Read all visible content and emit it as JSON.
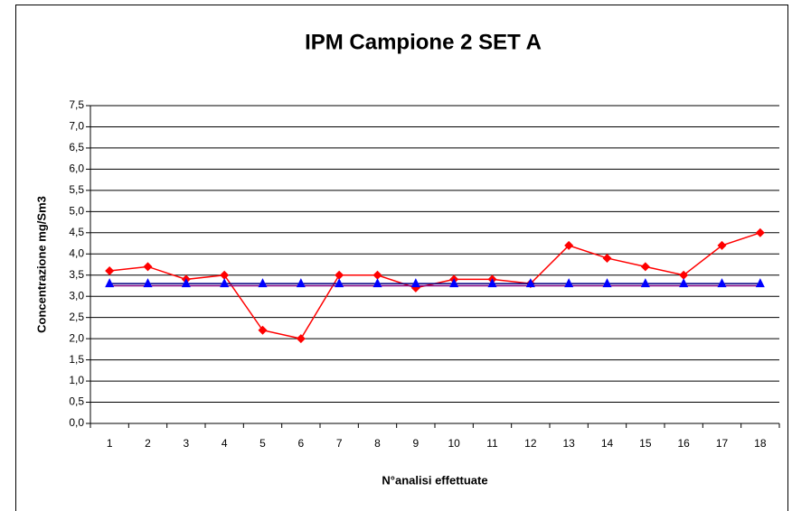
{
  "chart_data": {
    "type": "line",
    "title": "IPM Campione 2 SET A",
    "y_label": "Concentrazione mg/Sm3",
    "x_label": "N°analisi effettuate",
    "categories": [
      "1",
      "2",
      "3",
      "4",
      "5",
      "6",
      "7",
      "8",
      "9",
      "10",
      "11",
      "12",
      "13",
      "14",
      "15",
      "16",
      "17",
      "18"
    ],
    "series": [
      {
        "color": "#ff0000",
        "marker": "diamond",
        "values": [
          3.6,
          3.7,
          3.4,
          3.5,
          2.2,
          2.0,
          3.5,
          3.5,
          3.2,
          3.4,
          3.4,
          3.3,
          4.2,
          3.9,
          3.7,
          3.5,
          4.2,
          4.5
        ]
      },
      {
        "color": "#800080",
        "marker": "none",
        "values": [
          3.25,
          3.25,
          3.25,
          3.25,
          3.25,
          3.25,
          3.25,
          3.25,
          3.25,
          3.25,
          3.25,
          3.25,
          3.25,
          3.25,
          3.25,
          3.25,
          3.25,
          3.25
        ]
      },
      {
        "color": "#0000ff",
        "line_color": "#000080",
        "marker": "triangle",
        "values": [
          3.3,
          3.3,
          3.3,
          3.3,
          3.3,
          3.3,
          3.3,
          3.3,
          3.3,
          3.3,
          3.3,
          3.3,
          3.3,
          3.3,
          3.3,
          3.3,
          3.3,
          3.3
        ]
      }
    ],
    "ylim": [
      0,
      7.5
    ],
    "yticks": [
      {
        "value": 0,
        "label": "0,0"
      },
      {
        "value": 0.5,
        "label": "0,5"
      },
      {
        "value": 1,
        "label": "1,0"
      },
      {
        "value": 1.5,
        "label": "1,5"
      },
      {
        "value": 2,
        "label": "2,0"
      },
      {
        "value": 2.5,
        "label": "2,5"
      },
      {
        "value": 3,
        "label": "3,0"
      },
      {
        "value": 3.5,
        "label": "3,5"
      },
      {
        "value": 4,
        "label": "4,0"
      },
      {
        "value": 4.5,
        "label": "4,5"
      },
      {
        "value": 5,
        "label": "5,0"
      },
      {
        "value": 5.5,
        "label": "5,5"
      },
      {
        "value": 6,
        "label": "6,0"
      },
      {
        "value": 6.5,
        "label": "6,5"
      },
      {
        "value": 7,
        "label": "7,0"
      },
      {
        "value": 7.5,
        "label": "7,5"
      }
    ],
    "grid": true
  }
}
